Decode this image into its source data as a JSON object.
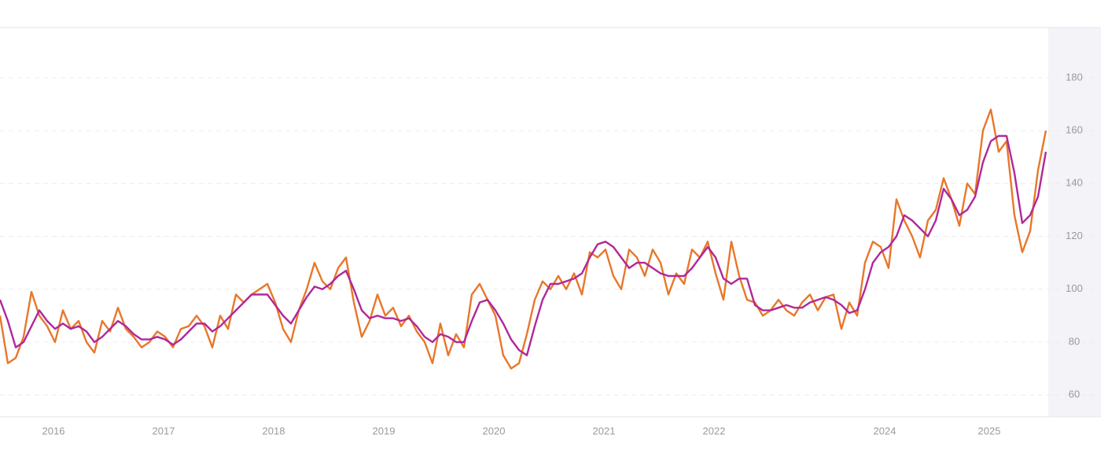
{
  "chart_data": {
    "type": "line",
    "series": [
      {
        "name": "Orange series",
        "color": "#e8772a",
        "values": [
          90,
          72,
          74,
          82,
          99,
          90,
          86,
          80,
          92,
          85,
          88,
          80,
          76,
          88,
          84,
          93,
          85,
          82,
          78,
          80,
          84,
          82,
          78,
          85,
          86,
          90,
          86,
          78,
          90,
          85,
          98,
          95,
          98,
          100,
          102,
          95,
          85,
          80,
          92,
          100,
          110,
          103,
          100,
          108,
          112,
          95,
          82,
          88,
          98,
          90,
          93,
          86,
          90,
          84,
          80,
          72,
          87,
          75,
          83,
          78,
          98,
          102,
          96,
          90,
          75,
          70,
          72,
          83,
          96,
          103,
          100,
          105,
          100,
          106,
          98,
          114,
          112,
          115,
          105,
          100,
          115,
          112,
          105,
          115,
          110,
          98,
          106,
          102,
          115,
          112,
          118,
          106,
          96,
          118,
          105,
          96,
          95,
          90,
          92,
          96,
          92,
          90,
          95,
          98,
          92,
          97,
          98,
          85,
          95,
          90,
          110,
          118,
          116,
          108,
          134,
          126,
          120,
          112,
          126,
          130,
          142,
          134,
          124,
          140,
          136,
          160,
          168,
          152,
          156,
          128,
          114,
          122,
          145,
          160
        ]
      },
      {
        "name": "Purple series",
        "color": "#b0289a",
        "values": [
          96,
          88,
          78,
          80,
          86,
          92,
          88,
          85,
          87,
          85,
          86,
          84,
          80,
          82,
          85,
          88,
          86,
          83,
          81,
          81,
          82,
          81,
          79,
          81,
          84,
          87,
          87,
          84,
          86,
          89,
          92,
          95,
          98,
          98,
          98,
          94,
          90,
          87,
          92,
          97,
          101,
          100,
          102,
          105,
          107,
          100,
          92,
          89,
          90,
          89,
          89,
          88,
          89,
          86,
          82,
          80,
          83,
          82,
          80,
          80,
          88,
          95,
          96,
          92,
          87,
          81,
          77,
          75,
          86,
          96,
          102,
          102,
          103,
          104,
          106,
          112,
          117,
          118,
          116,
          112,
          108,
          110,
          110,
          108,
          106,
          105,
          105,
          105,
          108,
          112,
          116,
          112,
          104,
          102,
          104,
          104,
          94,
          92,
          92,
          93,
          94,
          93,
          93,
          95,
          96,
          97,
          96,
          94,
          91,
          92,
          100,
          110,
          114,
          116,
          120,
          128,
          126,
          123,
          120,
          126,
          138,
          134,
          128,
          130,
          135,
          148,
          156,
          158,
          158,
          144,
          125,
          128,
          135,
          152
        ]
      }
    ],
    "xlim": [
      0,
      133.3
    ],
    "xticks": [
      {
        "value": 6.8,
        "label": "2016"
      },
      {
        "value": 20.8,
        "label": "2017"
      },
      {
        "value": 34.8,
        "label": "2018"
      },
      {
        "value": 48.8,
        "label": "2019"
      },
      {
        "value": 62.8,
        "label": "2020"
      },
      {
        "value": 76.8,
        "label": "2021"
      },
      {
        "value": 90.8,
        "label": "2022"
      },
      {
        "value": 112.5,
        "label": "2024"
      },
      {
        "value": 125.8,
        "label": "2025"
      }
    ],
    "ylim": [
      55,
      199
    ],
    "yticks": [
      60,
      80,
      100,
      120,
      140,
      160,
      180
    ],
    "grid": true
  }
}
